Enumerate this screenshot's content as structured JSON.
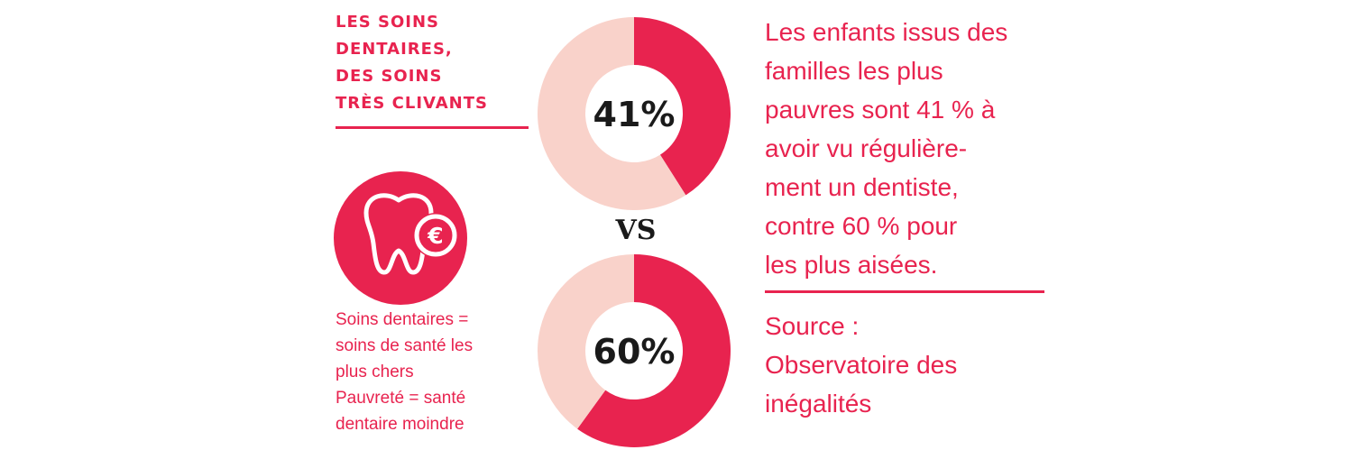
{
  "headline": [
    "LES SOINS",
    "DENTAIRES,",
    "DES SOINS",
    "TRÈS CLIVANTS"
  ],
  "left_notes": [
    "Soins dentaires =",
    "soins de santé les",
    "plus chers",
    "Pauvreté = santé",
    "dentaire moindre"
  ],
  "description": [
    "Les enfants issus des",
    "familles les plus",
    "pauvres sont 41 % à",
    "avoir vu régulière-",
    "ment un dentiste,",
    "contre 60 % pour",
    "les plus aisées."
  ],
  "source": [
    "Source :",
    "Observatoire des",
    "inégalités"
  ],
  "vs_label": "VS",
  "icon": "tooth-euro-icon",
  "colors": {
    "accent": "#e8234f",
    "light": "#f9d2ca",
    "text_dark": "#1a1a1a"
  },
  "chart_data": [
    {
      "type": "pie",
      "variant": "donut",
      "values": [
        41,
        59
      ],
      "highlight_value": 41,
      "center_label": "41%"
    },
    {
      "type": "pie",
      "variant": "donut",
      "values": [
        60,
        40
      ],
      "highlight_value": 60,
      "center_label": "60%"
    }
  ]
}
